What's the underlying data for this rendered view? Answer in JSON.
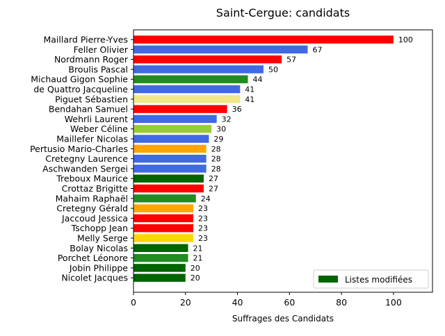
{
  "chart_data": {
    "type": "bar",
    "orientation": "horizontal",
    "title": "Saint-Cergue: candidats",
    "xlabel": "Suffrages des Candidats",
    "ylabel": "",
    "xlim": [
      0,
      115
    ],
    "xticks": [
      0,
      20,
      40,
      60,
      80,
      100
    ],
    "grid": false,
    "legend": {
      "position": "lower-right",
      "entries": [
        {
          "label": "Listes modifiées",
          "color": "#006400"
        }
      ]
    },
    "bars": [
      {
        "name": "Maillard Pierre-Yves",
        "value": 100,
        "color": "#ff0000"
      },
      {
        "name": "Feller Olivier",
        "value": 67,
        "color": "#4169e1"
      },
      {
        "name": "Nordmann Roger",
        "value": 57,
        "color": "#ff0000"
      },
      {
        "name": "Broulis Pascal",
        "value": 50,
        "color": "#4169e1"
      },
      {
        "name": "Michaud Gigon Sophie",
        "value": 44,
        "color": "#228b22"
      },
      {
        "name": "de Quattro Jacqueline",
        "value": 41,
        "color": "#4169e1"
      },
      {
        "name": "Piguet Sébastien",
        "value": 41,
        "color": "#f0e68c"
      },
      {
        "name": "Bendahan Samuel",
        "value": 36,
        "color": "#ff0000"
      },
      {
        "name": "Wehrli Laurent",
        "value": 32,
        "color": "#4169e1"
      },
      {
        "name": "Weber Céline",
        "value": 30,
        "color": "#9acd32"
      },
      {
        "name": "Maillefer Nicolas",
        "value": 29,
        "color": "#4169e1"
      },
      {
        "name": "Pertusio Mario-Charles",
        "value": 28,
        "color": "#ffa500"
      },
      {
        "name": "Cretegny Laurence",
        "value": 28,
        "color": "#4169e1"
      },
      {
        "name": "Aschwanden Sergei",
        "value": 28,
        "color": "#4169e1"
      },
      {
        "name": "Treboux Maurice",
        "value": 27,
        "color": "#006400"
      },
      {
        "name": "Crottaz Brigitte",
        "value": 27,
        "color": "#ff0000"
      },
      {
        "name": "Mahaim Raphaël",
        "value": 24,
        "color": "#228b22"
      },
      {
        "name": "Cretegny Gérald",
        "value": 23,
        "color": "#ffa500"
      },
      {
        "name": "Jaccoud Jessica",
        "value": 23,
        "color": "#ff0000"
      },
      {
        "name": "Tschopp Jean",
        "value": 23,
        "color": "#ff0000"
      },
      {
        "name": "Melly Serge",
        "value": 23,
        "color": "#ffd700"
      },
      {
        "name": "Bolay Nicolas",
        "value": 21,
        "color": "#006400"
      },
      {
        "name": "Porchet Léonore",
        "value": 21,
        "color": "#228b22"
      },
      {
        "name": "Jobin Philippe",
        "value": 20,
        "color": "#006400"
      },
      {
        "name": "Nicolet Jacques",
        "value": 20,
        "color": "#006400"
      }
    ]
  }
}
